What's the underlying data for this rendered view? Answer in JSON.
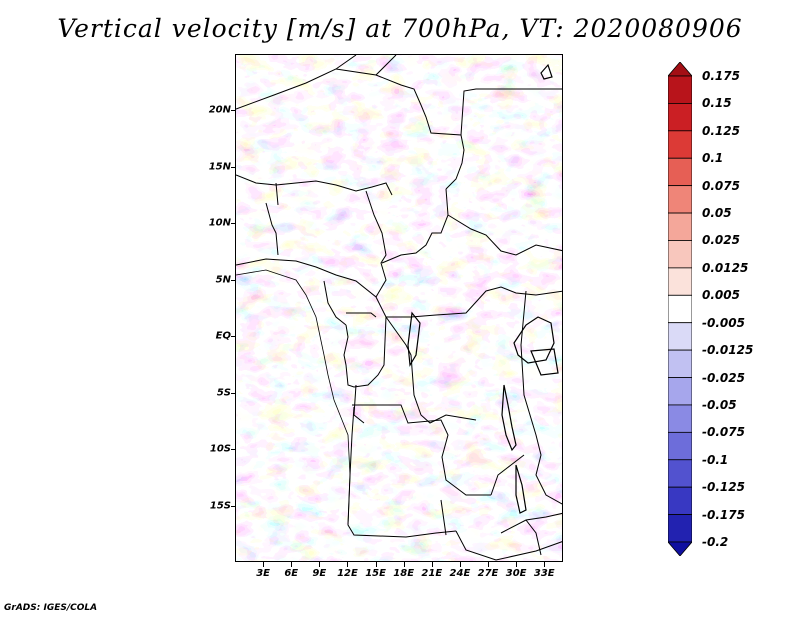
{
  "title": "Vertical velocity [m/s] at 700hPa, VT: 2020080906",
  "credit": "GrADS: IGES/COLA",
  "map": {
    "lon_range": [
      0,
      35
    ],
    "lat_range": [
      -20,
      25
    ],
    "lat_ticks": [
      {
        "label": "20N",
        "value": 20
      },
      {
        "label": "15N",
        "value": 15
      },
      {
        "label": "10N",
        "value": 10
      },
      {
        "label": "5N",
        "value": 5
      },
      {
        "label": "EQ",
        "value": 0
      },
      {
        "label": "5S",
        "value": -5
      },
      {
        "label": "10S",
        "value": -10
      },
      {
        "label": "15S",
        "value": -15
      }
    ],
    "lon_ticks": [
      {
        "label": "3E",
        "value": 3
      },
      {
        "label": "6E",
        "value": 6
      },
      {
        "label": "9E",
        "value": 9
      },
      {
        "label": "12E",
        "value": 12
      },
      {
        "label": "15E",
        "value": 15
      },
      {
        "label": "18E",
        "value": 18
      },
      {
        "label": "21E",
        "value": 21
      },
      {
        "label": "24E",
        "value": 24
      },
      {
        "label": "27E",
        "value": 27
      },
      {
        "label": "30E",
        "value": 30
      },
      {
        "label": "33E",
        "value": 33
      }
    ]
  },
  "colorbar": {
    "labels": [
      "0.175",
      "0.15",
      "0.125",
      "0.1",
      "0.075",
      "0.05",
      "0.025",
      "0.0125",
      "0.005",
      "-0.005",
      "-0.0125",
      "-0.025",
      "-0.05",
      "-0.075",
      "-0.1",
      "-0.125",
      "-0.175",
      "-0.2"
    ],
    "colors": [
      "#a30f15",
      "#b8141b",
      "#cb1f24",
      "#dc3a36",
      "#e65f55",
      "#ef8578",
      "#f4a79a",
      "#f8c7bd",
      "#fbe2db",
      "#ffffff",
      "#dadaf7",
      "#c1c1f2",
      "#a6a6ec",
      "#8a8ae4",
      "#6d6dda",
      "#5252cf",
      "#3838c2",
      "#2222b0",
      "#1010a0"
    ]
  }
}
